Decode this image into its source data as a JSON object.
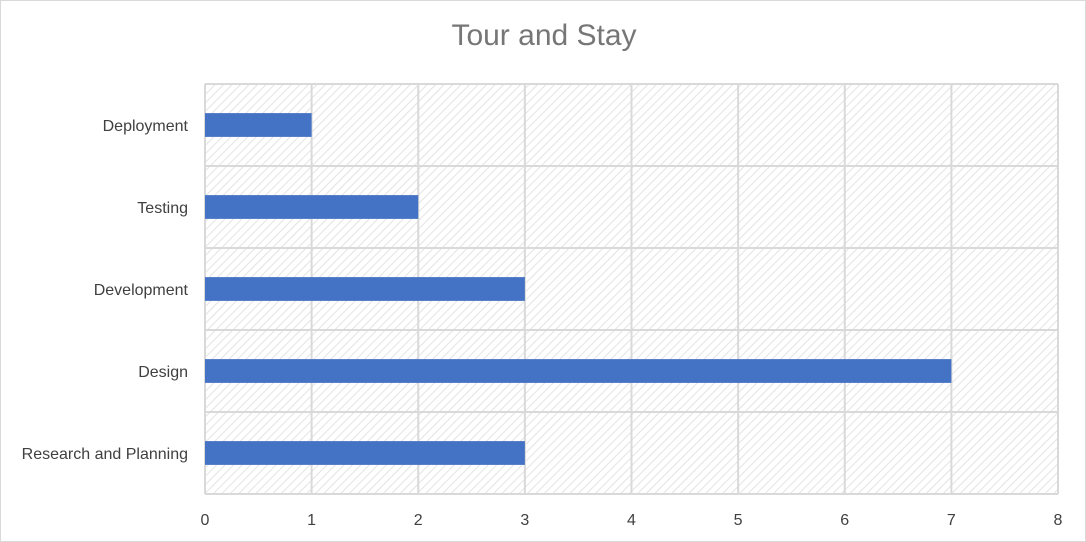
{
  "chart_data": {
    "type": "bar",
    "orientation": "horizontal",
    "title": "Tour and Stay",
    "xlabel": "",
    "ylabel": "",
    "categories": [
      "Research and Planning",
      "Design",
      "Development",
      "Testing",
      "Deployment"
    ],
    "values": [
      3,
      7,
      3,
      2,
      1
    ],
    "xlim": [
      0,
      8
    ],
    "x_ticks": [
      "0",
      "1",
      "2",
      "3",
      "4",
      "5",
      "6",
      "7",
      "8"
    ],
    "grid": true,
    "legend": "none",
    "colors": {
      "bar": "#4472c4",
      "grid": "#d9d9d9",
      "plot_hatch": "#e3e3e3",
      "title": "#767676",
      "labels": "#404040"
    }
  }
}
